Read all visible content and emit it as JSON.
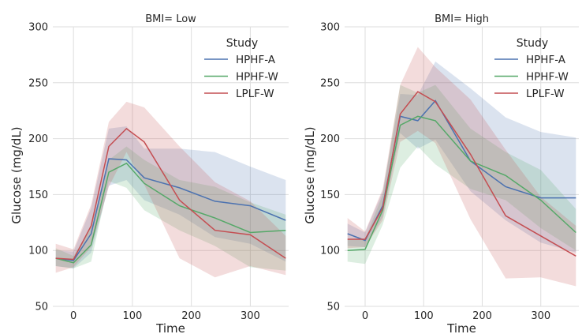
{
  "chart_data": {
    "type": "line",
    "ylabel": "Glucose (mg/dL)",
    "xlabel": "Time",
    "xlim": [
      -35,
      365
    ],
    "ylim": [
      50,
      300
    ],
    "xticks": [
      0,
      100,
      200,
      300
    ],
    "yticks": [
      50,
      100,
      150,
      200,
      250,
      300
    ],
    "grid": true,
    "legend": {
      "title": "Study",
      "placement": "top-right"
    },
    "x": [
      -30,
      0,
      30,
      60,
      90,
      120,
      180,
      240,
      300,
      360
    ],
    "series_names": [
      "HPHF-A",
      "HPHF-W",
      "LPLF-W"
    ],
    "colors": {
      "HPHF-A": "#4c72b0",
      "HPHF-W": "#55a868",
      "LPLF-W": "#c44e52"
    },
    "panels": [
      {
        "title": "BMI= Low",
        "series": [
          {
            "name": "HPHF-A",
            "mean": [
              93,
              91,
              115,
              182,
              181,
              165,
              156,
              144,
              140,
              127
            ],
            "lower": [
              86,
              84,
              98,
              158,
              163,
              145,
              132,
              112,
              106,
              90
            ],
            "upper": [
              100,
              99,
              138,
              209,
              211,
              191,
              191,
              188,
              175,
              163
            ]
          },
          {
            "name": "HPHF-W",
            "mean": [
              93,
              89,
              105,
              170,
              178,
              160,
              140,
              129,
              116,
              118
            ],
            "lower": [
              86,
              84,
              90,
              162,
              156,
              136,
              118,
              104,
              85,
              82
            ],
            "upper": [
              102,
              95,
              121,
              181,
              193,
              181,
              163,
              157,
              143,
              132
            ]
          },
          {
            "name": "LPLF-W",
            "mean": [
              93,
              92,
              122,
              193,
              209,
              197,
              145,
              118,
              114,
              93
            ],
            "lower": [
              80,
              85,
              103,
              157,
              188,
              159,
              93,
              76,
              86,
              78
            ],
            "upper": [
              106,
              101,
              141,
              215,
              233,
              228,
              193,
              161,
              144,
              113
            ]
          }
        ]
      },
      {
        "title": "BMI= High",
        "series": [
          {
            "name": "HPHF-A",
            "mean": [
              115,
              109,
              140,
              220,
              216,
              234,
              180,
              157,
              147,
              147
            ],
            "lower": [
              104,
              103,
              130,
              205,
              191,
              199,
              153,
              127,
              107,
              98
            ],
            "upper": [
              124,
              116,
              153,
              240,
              239,
              269,
              245,
              219,
              206,
              201
            ]
          },
          {
            "name": "HPHF-W",
            "mean": [
              100,
              101,
              136,
              212,
              220,
              216,
              180,
              167,
              145,
              116
            ],
            "lower": [
              90,
              88,
              123,
              174,
              193,
              177,
              155,
              145,
              120,
              100
            ],
            "upper": [
              110,
              110,
              150,
              248,
              241,
              248,
              209,
              188,
              172,
              137
            ]
          },
          {
            "name": "LPLF-W",
            "mean": [
              110,
              110,
              138,
              222,
              242,
              233,
              186,
              131,
              113,
              95
            ],
            "lower": [
              102,
              103,
              127,
              197,
              207,
              196,
              128,
              75,
              76,
              68
            ],
            "upper": [
              129,
              117,
              155,
              248,
              282,
              264,
              235,
              190,
              148,
              122
            ]
          }
        ]
      }
    ]
  }
}
